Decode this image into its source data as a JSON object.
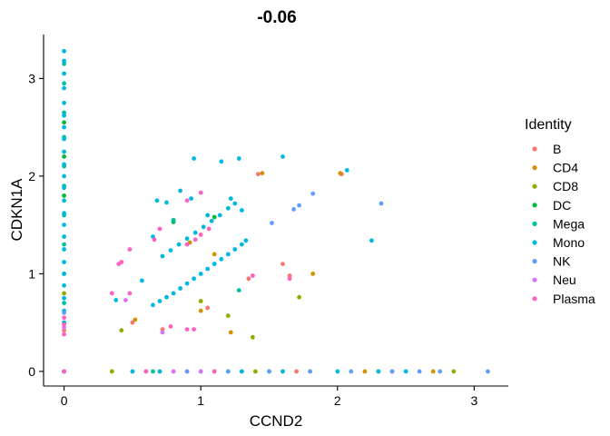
{
  "chart_data": {
    "type": "scatter",
    "title": "-0.06",
    "xlabel": "CCND2",
    "ylabel": "CDKN1A",
    "xlim": [
      -0.15,
      3.25
    ],
    "ylim": [
      -0.15,
      3.45
    ],
    "xticks": [
      0,
      1,
      2,
      3
    ],
    "yticks": [
      0,
      1,
      2,
      3
    ],
    "grid": false,
    "legend": {
      "title": "Identity",
      "placement": "right"
    },
    "series": [
      {
        "name": "B",
        "color": "#F8766D",
        "points": [
          [
            0,
            0
          ],
          [
            0,
            0.42
          ],
          [
            0.5,
            0.5
          ],
          [
            0.72,
            0.43
          ],
          [
            1.05,
            0.65
          ],
          [
            1.35,
            0.95
          ],
          [
            1.42,
            2.02
          ],
          [
            1.6,
            1.1
          ],
          [
            1.65,
            0.98
          ],
          [
            2.03,
            2.02
          ],
          [
            0.9,
            0
          ],
          [
            1.3,
            0
          ],
          [
            1.7,
            0
          ]
        ]
      },
      {
        "name": "CD4",
        "color": "#D39200",
        "points": [
          [
            0,
            0
          ],
          [
            0,
            0.5
          ],
          [
            0.52,
            0.53
          ],
          [
            0.92,
            1.32
          ],
          [
            1.0,
            0.62
          ],
          [
            1.1,
            1.2
          ],
          [
            1.22,
            0.4
          ],
          [
            1.82,
            1.0
          ],
          [
            1.45,
            2.03
          ],
          [
            2.02,
            2.03
          ],
          [
            0.7,
            0
          ],
          [
            1.6,
            0
          ],
          [
            2.2,
            0
          ],
          [
            2.4,
            0
          ],
          [
            2.7,
            0
          ]
        ]
      },
      {
        "name": "CD8",
        "color": "#93AA00",
        "points": [
          [
            0,
            0
          ],
          [
            0,
            0.8
          ],
          [
            0.42,
            0.42
          ],
          [
            0.8,
            1.55
          ],
          [
            1.0,
            0.72
          ],
          [
            1.2,
            0.57
          ],
          [
            1.38,
            0.35
          ],
          [
            1.72,
            0.76
          ],
          [
            0.35,
            0
          ],
          [
            0.5,
            0
          ],
          [
            0.8,
            0
          ],
          [
            1.1,
            0
          ],
          [
            1.4,
            0
          ],
          [
            1.8,
            0
          ],
          [
            2.3,
            0
          ],
          [
            2.85,
            0
          ]
        ]
      },
      {
        "name": "DC",
        "color": "#00BA38",
        "points": [
          [
            0,
            0
          ],
          [
            0,
            2.55
          ],
          [
            0,
            2.2
          ],
          [
            0,
            1.8
          ],
          [
            0.8,
            1.53
          ],
          [
            1.1,
            1.58
          ],
          [
            0.6,
            0
          ],
          [
            1.5,
            0
          ]
        ]
      },
      {
        "name": "Mega",
        "color": "#00C19F",
        "points": [
          [
            0,
            0
          ],
          [
            0,
            3.15
          ],
          [
            0,
            2.95
          ],
          [
            0,
            2.65
          ],
          [
            0,
            2.4
          ],
          [
            0,
            2.1
          ],
          [
            0,
            1.9
          ],
          [
            0,
            1.6
          ],
          [
            0,
            1.3
          ],
          [
            0,
            1.0
          ],
          [
            0,
            0.7
          ],
          [
            0.8,
            1.55
          ],
          [
            1.28,
            0.83
          ],
          [
            0.65,
            0
          ],
          [
            1.2,
            0
          ]
        ]
      },
      {
        "name": "Mono",
        "color": "#00B9E3",
        "points": [
          [
            0,
            0
          ],
          [
            0,
            3.28
          ],
          [
            0,
            3.18
          ],
          [
            0,
            3.05
          ],
          [
            0,
            2.9
          ],
          [
            0,
            2.75
          ],
          [
            0,
            2.62
          ],
          [
            0,
            2.5
          ],
          [
            0,
            2.38
          ],
          [
            0,
            2.25
          ],
          [
            0,
            2.12
          ],
          [
            0,
            2.0
          ],
          [
            0,
            1.88
          ],
          [
            0,
            1.75
          ],
          [
            0,
            1.62
          ],
          [
            0,
            1.5
          ],
          [
            0,
            1.38
          ],
          [
            0,
            1.25
          ],
          [
            0,
            1.12
          ],
          [
            0,
            1.0
          ],
          [
            0,
            0.88
          ],
          [
            0,
            0.75
          ],
          [
            0,
            0.62
          ],
          [
            0,
            0.5
          ],
          [
            0.65,
            0.68
          ],
          [
            0.7,
            0.72
          ],
          [
            0.75,
            0.76
          ],
          [
            0.8,
            0.8
          ],
          [
            0.85,
            0.85
          ],
          [
            0.9,
            0.9
          ],
          [
            0.95,
            0.95
          ],
          [
            1.0,
            1.0
          ],
          [
            1.05,
            1.05
          ],
          [
            1.1,
            1.1
          ],
          [
            0.72,
            1.18
          ],
          [
            0.78,
            1.24
          ],
          [
            0.84,
            1.3
          ],
          [
            0.9,
            1.36
          ],
          [
            0.96,
            1.42
          ],
          [
            1.02,
            1.48
          ],
          [
            1.08,
            1.54
          ],
          [
            1.14,
            1.6
          ],
          [
            1.1,
            1.1
          ],
          [
            1.15,
            1.15
          ],
          [
            1.2,
            1.2
          ],
          [
            1.25,
            1.25
          ],
          [
            1.3,
            1.3
          ],
          [
            1.33,
            1.34
          ],
          [
            0.68,
            1.75
          ],
          [
            0.75,
            1.73
          ],
          [
            0.85,
            1.85
          ],
          [
            0.93,
            1.77
          ],
          [
            0.95,
            2.18
          ],
          [
            1.15,
            2.15
          ],
          [
            1.2,
            1.67
          ],
          [
            1.25,
            1.72
          ],
          [
            1.28,
            2.18
          ],
          [
            1.6,
            2.2
          ],
          [
            2.07,
            2.06
          ],
          [
            2.25,
            1.34
          ],
          [
            0.65,
            1.38
          ],
          [
            0.57,
            0.93
          ],
          [
            0.38,
            0.73
          ],
          [
            1.3,
            1.65
          ],
          [
            1.22,
            1.77
          ],
          [
            1.05,
            1.6
          ],
          [
            0.5,
            0
          ],
          [
            0.7,
            0
          ],
          [
            1.0,
            0
          ],
          [
            1.3,
            0
          ],
          [
            1.6,
            0
          ],
          [
            2.0,
            0
          ],
          [
            2.3,
            0
          ],
          [
            2.5,
            0
          ]
        ]
      },
      {
        "name": "NK",
        "color": "#619CFF",
        "points": [
          [
            0,
            0
          ],
          [
            0,
            0.6
          ],
          [
            1.52,
            1.52
          ],
          [
            1.68,
            1.66
          ],
          [
            1.72,
            1.7
          ],
          [
            1.82,
            1.82
          ],
          [
            2.32,
            1.72
          ],
          [
            0.9,
            0
          ],
          [
            1.2,
            0
          ],
          [
            1.5,
            0
          ],
          [
            1.8,
            0
          ],
          [
            2.1,
            0
          ],
          [
            2.4,
            0
          ],
          [
            2.6,
            0
          ],
          [
            2.75,
            0
          ],
          [
            3.1,
            0
          ]
        ]
      },
      {
        "name": "Neu",
        "color": "#DB72FB",
        "points": [
          [
            0,
            0
          ],
          [
            0,
            0.45
          ],
          [
            0.45,
            0.73
          ],
          [
            0.72,
            0.4
          ],
          [
            0.8,
            0
          ],
          [
            1.0,
            0
          ]
        ]
      },
      {
        "name": "Plasma",
        "color": "#FF61C3",
        "points": [
          [
            0,
            0
          ],
          [
            0,
            0.38
          ],
          [
            0,
            0.48
          ],
          [
            0,
            0.55
          ],
          [
            0.35,
            0.8
          ],
          [
            0.48,
            0.8
          ],
          [
            0.48,
            1.25
          ],
          [
            0.4,
            1.1
          ],
          [
            0.42,
            1.12
          ],
          [
            0.66,
            1.35
          ],
          [
            0.7,
            1.46
          ],
          [
            0.78,
            0.46
          ],
          [
            0.9,
            1.3
          ],
          [
            0.96,
            1.35
          ],
          [
            1.0,
            1.4
          ],
          [
            1.06,
            1.46
          ],
          [
            0.9,
            0.43
          ],
          [
            0.95,
            0.43
          ],
          [
            0.9,
            1.75
          ],
          [
            1.0,
            1.83
          ],
          [
            1.38,
            0.98
          ],
          [
            1.65,
            0.95
          ],
          [
            0.6,
            0
          ],
          [
            1.1,
            0
          ]
        ]
      }
    ]
  }
}
